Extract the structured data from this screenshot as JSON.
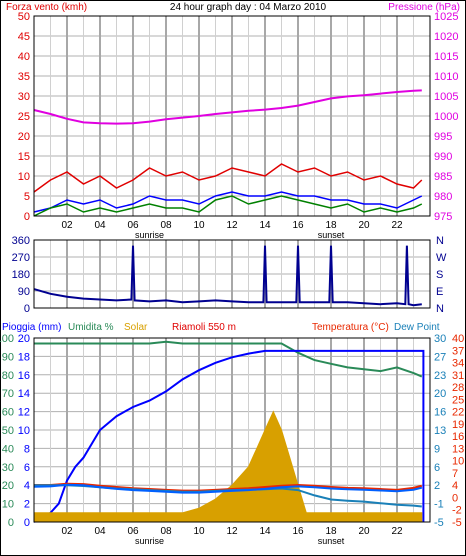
{
  "colors": {
    "wind": "#e00000",
    "gust_wind": "#008000",
    "avg_wind": "#0000ff",
    "pressure": "#e000e0",
    "direction": "#000090",
    "rain": "#0000ff",
    "humidity": "#2a8a58",
    "solar": "#d8a000",
    "temperature": "#e82800",
    "dew_point": "#1a80b8",
    "chill": "#0060ff",
    "grid": "#b0b0b0",
    "frame": "#000000"
  },
  "chart_data": [
    {
      "type": "line",
      "title": "24 hour graph day : 04 Marzo 2010",
      "left_label": "Forza vento (kmh)",
      "right_label": "Pressione (hPa)",
      "x_ticks": [
        "02",
        "04",
        "06",
        "08",
        "10",
        "12",
        "14",
        "16",
        "18",
        "20",
        "22"
      ],
      "x_subticks": [
        "sunrise",
        "sunset"
      ],
      "y_left_ticks": [
        "0",
        "5",
        "10",
        "15",
        "20",
        "25",
        "30",
        "35",
        "40",
        "45",
        "50"
      ],
      "y_left_range": [
        0,
        50
      ],
      "y_right_ticks": [
        "975",
        "980",
        "985",
        "990",
        "995",
        "1000",
        "1005",
        "1010",
        "1015",
        "1020",
        "1025"
      ],
      "y_right_range": [
        975,
        1025
      ],
      "x_range": [
        0,
        24
      ],
      "series": [
        {
          "key": "pressure",
          "x": [
            0,
            1,
            2,
            3,
            4,
            5,
            6,
            7,
            8,
            9,
            10,
            11,
            12,
            13,
            14,
            15,
            16,
            17,
            18,
            19,
            20,
            21,
            22,
            23,
            23.5
          ],
          "values": [
            1001.5,
            1000.5,
            999.3,
            998.4,
            998.2,
            998.1,
            998.2,
            998.6,
            999.2,
            999.6,
            1000.0,
            1000.5,
            1000.9,
            1001.3,
            1001.6,
            1002.0,
            1002.6,
            1003.5,
            1004.4,
            1004.9,
            1005.2,
            1005.6,
            1006.0,
            1006.3,
            1006.4
          ]
        },
        {
          "key": "wind",
          "x": [
            0,
            1,
            2,
            3,
            4,
            5,
            6,
            7,
            8,
            9,
            10,
            11,
            12,
            13,
            14,
            15,
            16,
            17,
            18,
            19,
            20,
            21,
            22,
            23,
            23.5
          ],
          "values": [
            6,
            9,
            11,
            8,
            10,
            7,
            9,
            12,
            10,
            11,
            9,
            10,
            12,
            11,
            10,
            13,
            11,
            12,
            10,
            11,
            9,
            10,
            8,
            7,
            9
          ]
        },
        {
          "key": "avg_wind",
          "x": [
            0,
            1,
            2,
            3,
            4,
            5,
            6,
            7,
            8,
            9,
            10,
            11,
            12,
            13,
            14,
            15,
            16,
            17,
            18,
            19,
            20,
            21,
            22,
            23,
            23.5
          ],
          "values": [
            1,
            2,
            4,
            3,
            4,
            2,
            3,
            5,
            4,
            4,
            3,
            5,
            6,
            5,
            5,
            6,
            5,
            5,
            4,
            4,
            3,
            3,
            2,
            4,
            5
          ]
        },
        {
          "key": "gust_wind",
          "x": [
            0,
            1,
            2,
            3,
            4,
            5,
            6,
            7,
            8,
            9,
            10,
            11,
            12,
            13,
            14,
            15,
            16,
            17,
            18,
            19,
            20,
            21,
            22,
            23,
            23.5
          ],
          "values": [
            0,
            2,
            3,
            1,
            2,
            1,
            2,
            3,
            2,
            2,
            1,
            4,
            5,
            3,
            4,
            5,
            4,
            3,
            2,
            3,
            1,
            2,
            1,
            2,
            3
          ]
        }
      ]
    },
    {
      "type": "line",
      "y_left_ticks": [
        "0",
        "90",
        "180",
        "270",
        "360"
      ],
      "y_left_range": [
        0,
        360
      ],
      "y_right_ticks": [
        "N",
        "W",
        "S",
        "E",
        "N"
      ],
      "x_range": [
        0,
        24
      ],
      "series": [
        {
          "key": "direction",
          "x": [
            0,
            1,
            2,
            3,
            4,
            5,
            5.9,
            6,
            6.1,
            7,
            8,
            9,
            10,
            11,
            12,
            13,
            13.9,
            14,
            14.1,
            15,
            15.9,
            16,
            16.1,
            17,
            17.9,
            18,
            18.1,
            19,
            20,
            21,
            22,
            22.5,
            22.6,
            22.7,
            23,
            23.5
          ],
          "values": [
            100,
            75,
            60,
            50,
            45,
            40,
            45,
            330,
            40,
            35,
            40,
            30,
            35,
            40,
            35,
            30,
            30,
            330,
            30,
            30,
            30,
            330,
            30,
            30,
            30,
            330,
            30,
            30,
            25,
            20,
            25,
            20,
            330,
            20,
            15,
            20
          ]
        }
      ]
    },
    {
      "type": "line",
      "left_labels": [
        "Pioggia (mm)",
        "Umidita %",
        "Solar",
        "Riamoli 550 m"
      ],
      "right_labels": [
        "Temperatura (°C)",
        "Dew Point"
      ],
      "x_ticks": [
        "02",
        "04",
        "06",
        "08",
        "10",
        "12",
        "14",
        "16",
        "18",
        "20",
        "22"
      ],
      "x_subticks": [
        "sunrise",
        "sunset"
      ],
      "y_left_outer_ticks": [
        "0",
        "10",
        "20",
        "30",
        "40",
        "50",
        "60",
        "70",
        "80",
        "90",
        "100"
      ],
      "y_left_inner_ticks": [
        "0",
        "2",
        "4",
        "6",
        "8",
        "10",
        "12",
        "14",
        "16",
        "18",
        "20"
      ],
      "y_left_outer_range": [
        0,
        100
      ],
      "y_left_inner_range": [
        0,
        20
      ],
      "y_right_outer_ticks": [
        "-5",
        "-1",
        "2",
        "6",
        "9",
        "13",
        "16",
        "20",
        "23",
        "27",
        "30"
      ],
      "y_right_inner_ticks": [
        "-5",
        "-2",
        "0",
        "4",
        "7",
        "10",
        "13",
        "16",
        "19",
        "22",
        "25",
        "28",
        "31",
        "34",
        "37",
        "40"
      ],
      "y_right_range": [
        -5,
        40
      ],
      "x_range": [
        0,
        24
      ],
      "series": [
        {
          "key": "humidity",
          "x": [
            0,
            1,
            2,
            3,
            4,
            5,
            6,
            7,
            8,
            9,
            10,
            11,
            12,
            13,
            14,
            15,
            16,
            17,
            18,
            19,
            20,
            21,
            22,
            23,
            23.5
          ],
          "values": [
            97,
            97,
            97,
            97,
            97,
            97,
            97,
            97,
            98,
            97,
            97,
            97,
            97,
            97,
            97,
            97,
            92,
            88,
            86,
            84,
            83,
            82,
            84,
            81,
            79
          ]
        },
        {
          "key": "rain",
          "x": [
            0,
            0.5,
            1,
            1.5,
            2,
            2.5,
            3,
            4,
            5,
            6,
            7,
            8,
            9,
            10,
            11,
            12,
            13,
            14,
            15,
            16,
            17,
            18,
            19,
            20,
            21,
            22,
            23,
            23.6,
            23.6
          ],
          "values": [
            0,
            0.4,
            1,
            2,
            4.5,
            6,
            7,
            10,
            11.5,
            12.5,
            13.2,
            14.2,
            15.5,
            16.5,
            17.3,
            17.9,
            18.3,
            18.6,
            18.6,
            18.6,
            18.6,
            18.6,
            18.6,
            18.6,
            18.6,
            18.6,
            18.6,
            18.6,
            0
          ]
        },
        {
          "key": "solar",
          "x": [
            0,
            8,
            9,
            10,
            11,
            12,
            13,
            13.5,
            14,
            14.5,
            15,
            15.5,
            16,
            16.5,
            17,
            18,
            23.5
          ],
          "values": [
            1,
            1,
            1,
            1.5,
            2.5,
            4,
            6,
            8,
            10,
            12,
            10,
            7,
            4,
            1,
            1,
            1,
            1
          ]
        },
        {
          "key": "temperature",
          "x": [
            0,
            1,
            2,
            3,
            4,
            5,
            6,
            7,
            8,
            9,
            10,
            11,
            12,
            13,
            14,
            15,
            16,
            17,
            18,
            19,
            20,
            21,
            22,
            23,
            23.5
          ],
          "values": [
            4,
            4,
            4.3,
            4.2,
            3.8,
            3.5,
            3.2,
            3,
            2.8,
            2.6,
            2.6,
            2.8,
            3,
            3.2,
            3.5,
            3.8,
            4,
            3.8,
            3.5,
            3.3,
            3.2,
            3,
            2.8,
            3.3,
            3.8
          ]
        },
        {
          "key": "dew_point",
          "x": [
            0,
            1,
            2,
            3,
            4,
            5,
            6,
            7,
            8,
            9,
            10,
            11,
            12,
            13,
            14,
            15,
            16,
            17,
            18,
            19,
            20,
            21,
            22,
            23,
            23.5
          ],
          "values": [
            4,
            4,
            4,
            3.8,
            3.5,
            3.2,
            3,
            2.8,
            2.6,
            2.4,
            2.4,
            2.6,
            2.8,
            2.9,
            3,
            3.2,
            2.8,
            1.5,
            0.5,
            0.2,
            0,
            -0.4,
            -0.8,
            -1,
            -1.2
          ]
        },
        {
          "key": "chill",
          "x": [
            0,
            1,
            2,
            3,
            4,
            5,
            6,
            7,
            8,
            9,
            10,
            11,
            12,
            13,
            14,
            15,
            16,
            17,
            18,
            19,
            20,
            21,
            22,
            23,
            23.5
          ],
          "values": [
            3.6,
            3.7,
            4.1,
            4,
            3.5,
            3.1,
            2.8,
            2.6,
            2.4,
            2.2,
            2.2,
            2.4,
            2.6,
            2.8,
            3.1,
            3.5,
            3.7,
            3.5,
            3.2,
            3,
            2.9,
            2.7,
            2.5,
            2.9,
            3.4
          ]
        }
      ]
    }
  ]
}
